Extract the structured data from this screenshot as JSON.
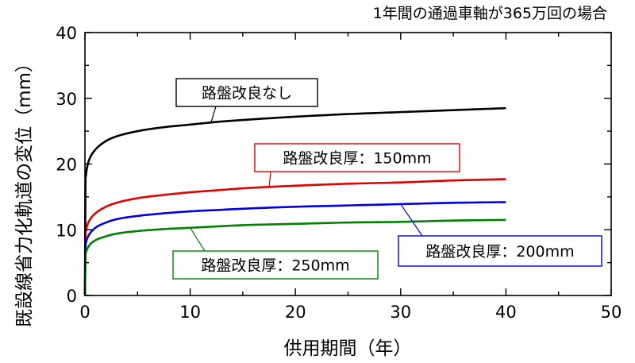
{
  "chart_data": {
    "type": "line",
    "title": "1年間の通過車軸が365万回の場合",
    "xlabel": "供用期間（年）",
    "ylabel": "既設線省力化軌道の変位（mm）",
    "xlim": [
      0,
      50
    ],
    "ylim": [
      0,
      40
    ],
    "xticks": [
      "0",
      "10",
      "20",
      "30",
      "40",
      "50"
    ],
    "yticks": [
      "0",
      "10",
      "20",
      "30",
      "40"
    ],
    "grid": false,
    "legend": "annotations",
    "series": [
      {
        "name": "路盤改良なし",
        "color": "#000000",
        "x": [
          0,
          0.05,
          0.1,
          0.25,
          0.5,
          1,
          2,
          3,
          5,
          7.5,
          10,
          12.5,
          15,
          20,
          25,
          30,
          35,
          40
        ],
        "y": [
          0,
          16.5,
          18.2,
          19.8,
          21.0,
          22.2,
          23.5,
          24.2,
          25.0,
          25.6,
          26.0,
          26.4,
          26.7,
          27.2,
          27.6,
          27.9,
          28.2,
          28.5
        ]
      },
      {
        "name": "路盤改良厚：150mm",
        "color": "#e00000",
        "x": [
          0,
          0.05,
          0.1,
          0.25,
          0.5,
          1,
          2,
          3,
          5,
          7.5,
          10,
          12.5,
          15,
          20,
          25,
          30,
          35,
          40
        ],
        "y": [
          0,
          9.0,
          9.8,
          10.8,
          11.6,
          12.5,
          13.5,
          14.1,
          14.8,
          15.3,
          15.7,
          16.0,
          16.3,
          16.7,
          17.0,
          17.2,
          17.5,
          17.7
        ]
      },
      {
        "name": "路盤改良厚：200mm",
        "color": "#0000e0",
        "x": [
          0,
          0.05,
          0.1,
          0.25,
          0.5,
          1,
          2,
          3,
          5,
          7.5,
          10,
          12.5,
          15,
          20,
          25,
          30,
          35,
          40
        ],
        "y": [
          0,
          7.3,
          8.0,
          8.8,
          9.5,
          10.3,
          11.1,
          11.6,
          12.1,
          12.5,
          12.8,
          13.0,
          13.2,
          13.5,
          13.7,
          13.9,
          14.1,
          14.2
        ]
      },
      {
        "name": "路盤改良厚：250mm",
        "color": "#008000",
        "x": [
          0,
          0.05,
          0.1,
          0.25,
          0.5,
          1,
          2,
          3,
          5,
          7.5,
          10,
          12.5,
          15,
          20,
          25,
          30,
          35,
          40
        ],
        "y": [
          0,
          5.9,
          6.5,
          7.2,
          7.8,
          8.4,
          9.0,
          9.4,
          9.8,
          10.1,
          10.3,
          10.5,
          10.7,
          10.9,
          11.1,
          11.2,
          11.4,
          11.5
        ]
      }
    ],
    "annotations": [
      {
        "text": "路盤改良なし",
        "series": 0,
        "point": [
          12,
          26.4
        ]
      },
      {
        "text": "路盤改良厚：150mm",
        "series": 1,
        "point": [
          17.5,
          16.5
        ]
      },
      {
        "text": "路盤改良厚：200mm",
        "series": 2,
        "point": [
          30,
          13.9
        ]
      },
      {
        "text": "路盤改良厚：250mm",
        "series": 3,
        "point": [
          10,
          10.3
        ]
      }
    ]
  }
}
